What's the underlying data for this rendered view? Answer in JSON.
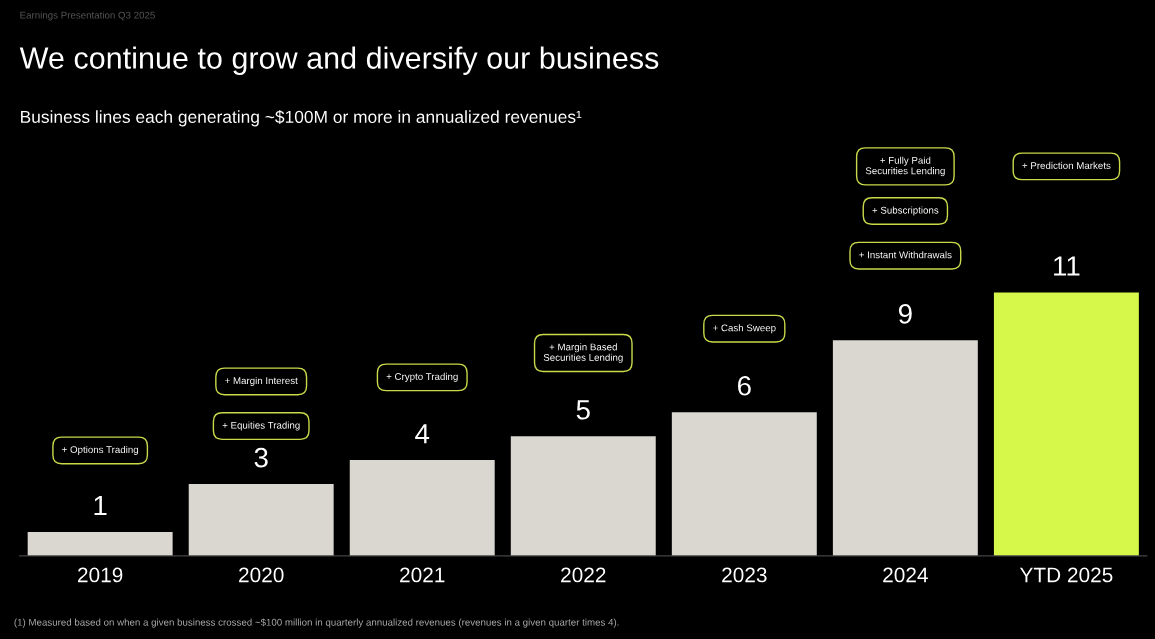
{
  "chart_data": {
    "type": "bar",
    "title": "We continue to grow and diversify our business",
    "subtitle": "Business lines each generating ~$100M or more in annualized revenues¹",
    "categories": [
      "2019",
      "2020",
      "2021",
      "2022",
      "2023",
      "2024",
      "YTD 2025"
    ],
    "values": [
      1,
      3,
      4,
      5,
      6,
      9,
      11
    ],
    "colors": [
      "#dad7d1",
      "#dad7d1",
      "#dad7d1",
      "#dad7d1",
      "#dad7d1",
      "#dad7d1",
      "#d6f84a"
    ],
    "data_labels": true,
    "annotations": [
      "Earnings Presentation Q3 2025",
      "+ Options Trading",
      "+ Equities Trading",
      "+ Margin Interest",
      "+ Crypto Trading",
      "+ Margin Based\nSecurities Lending",
      "+ Cash Sweep",
      "+ Instant Withdrawals",
      "+ Subscriptions",
      "+ Fully Paid\nSecurities Lending",
      "+ Prediction Markets",
      "(1) Measured based on when a given business crossed ~$100 million in quarterly annualized revenues (revenues in a given quarter times 4)."
    ],
    "grid": false,
    "legend": false
  }
}
